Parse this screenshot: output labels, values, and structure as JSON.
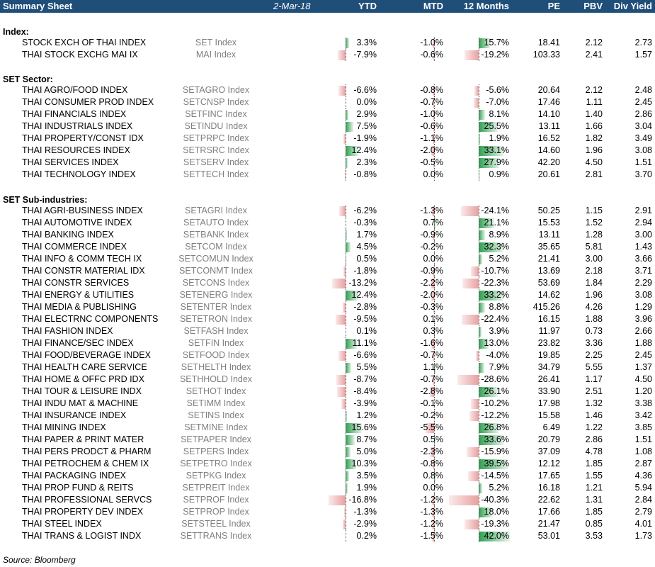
{
  "header": {
    "title": "Summary Sheet",
    "date": "2-Mar-18",
    "columns": [
      "YTD",
      "MTD",
      "12 Months",
      "PE",
      "PBV",
      "Div Yield"
    ]
  },
  "colors": {
    "header_bg": "#1f4e79",
    "positive_bar": "#2e9e4f",
    "negative_bar": "#e8a0a0"
  },
  "sections": [
    {
      "title": "Index:",
      "rows": [
        {
          "name": "STOCK EXCH OF THAI INDEX",
          "ticker": "SET Index",
          "ytd": 3.3,
          "ytd_t": "3.3%",
          "mtd": -1.0,
          "mtd_t": "-1.0%",
          "m12": 15.7,
          "m12_t": "15.7%",
          "pe": "18.41",
          "pbv": "2.12",
          "div": "2.73"
        },
        {
          "name": "THAI STOCK EXCHG MAI IX",
          "ticker": "MAI Index",
          "ytd": -7.9,
          "ytd_t": "-7.9%",
          "mtd": -0.6,
          "mtd_t": "-0.6%",
          "m12": -19.2,
          "m12_t": "-19.2%",
          "pe": "103.33",
          "pbv": "2.41",
          "div": "1.57"
        }
      ]
    },
    {
      "title": "SET Sector:",
      "rows": [
        {
          "name": "THAI AGRO/FOOD INDEX",
          "ticker": "SETAGRO Index",
          "ytd": -6.6,
          "ytd_t": "-6.6%",
          "mtd": -0.8,
          "mtd_t": "-0.8%",
          "m12": -5.6,
          "m12_t": "-5.6%",
          "pe": "20.64",
          "pbv": "2.12",
          "div": "2.48"
        },
        {
          "name": "THAI CONSUMER PROD INDEX",
          "ticker": "SETCNSP Index",
          "ytd": 0.0,
          "ytd_t": "0.0%",
          "mtd": -0.7,
          "mtd_t": "-0.7%",
          "m12": -7.0,
          "m12_t": "-7.0%",
          "pe": "17.46",
          "pbv": "1.11",
          "div": "2.45"
        },
        {
          "name": "THAI FINANCIALS INDEX",
          "ticker": "SETFINC Index",
          "ytd": 2.9,
          "ytd_t": "2.9%",
          "mtd": -1.0,
          "mtd_t": "-1.0%",
          "m12": 8.1,
          "m12_t": "8.1%",
          "pe": "14.10",
          "pbv": "1.40",
          "div": "2.86"
        },
        {
          "name": "THAI INDUSTRIALS INDEX",
          "ticker": "SETINDU Index",
          "ytd": 7.5,
          "ytd_t": "7.5%",
          "mtd": -0.6,
          "mtd_t": "-0.6%",
          "m12": 25.5,
          "m12_t": "25.5%",
          "pe": "13.11",
          "pbv": "1.66",
          "div": "3.04"
        },
        {
          "name": "THAI PROPERTY/CONST IDX",
          "ticker": "SETPRPC Index",
          "ytd": -1.9,
          "ytd_t": "-1.9%",
          "mtd": -1.1,
          "mtd_t": "-1.1%",
          "m12": 1.9,
          "m12_t": "1.9%",
          "pe": "16.52",
          "pbv": "1.82",
          "div": "3.49"
        },
        {
          "name": "THAI RESOURCES INDEX",
          "ticker": "SETRSRC Index",
          "ytd": 12.4,
          "ytd_t": "12.4%",
          "mtd": -2.0,
          "mtd_t": "-2.0%",
          "m12": 33.1,
          "m12_t": "33.1%",
          "pe": "14.60",
          "pbv": "1.96",
          "div": "3.08"
        },
        {
          "name": "THAI SERVICES INDEX",
          "ticker": "SETSERV Index",
          "ytd": 2.3,
          "ytd_t": "2.3%",
          "mtd": -0.5,
          "mtd_t": "-0.5%",
          "m12": 27.9,
          "m12_t": "27.9%",
          "pe": "42.20",
          "pbv": "4.50",
          "div": "1.51"
        },
        {
          "name": "THAI TECHNOLOGY INDEX",
          "ticker": "SETTECH Index",
          "ytd": -0.8,
          "ytd_t": "-0.8%",
          "mtd": 0.0,
          "mtd_t": "0.0%",
          "m12": 0.9,
          "m12_t": "0.9%",
          "pe": "20.61",
          "pbv": "2.81",
          "div": "3.70"
        }
      ]
    },
    {
      "title": "SET Sub-industries:",
      "rows": [
        {
          "name": "THAI AGRI-BUSINESS INDEX",
          "ticker": "SETAGRI Index",
          "ytd": -6.2,
          "ytd_t": "-6.2%",
          "mtd": -1.3,
          "mtd_t": "-1.3%",
          "m12": -24.1,
          "m12_t": "-24.1%",
          "pe": "50.25",
          "pbv": "1.15",
          "div": "2.91"
        },
        {
          "name": "THAI AUTOMOTIVE INDEX",
          "ticker": "SETAUTO Index",
          "ytd": -0.3,
          "ytd_t": "-0.3%",
          "mtd": 0.7,
          "mtd_t": "0.7%",
          "m12": 21.1,
          "m12_t": "21.1%",
          "pe": "15.53",
          "pbv": "1.52",
          "div": "2.94"
        },
        {
          "name": "THAI BANKING INDEX",
          "ticker": "SETBANK Index",
          "ytd": 1.7,
          "ytd_t": "1.7%",
          "mtd": -0.9,
          "mtd_t": "-0.9%",
          "m12": 8.9,
          "m12_t": "8.9%",
          "pe": "13.11",
          "pbv": "1.28",
          "div": "3.00"
        },
        {
          "name": "THAI COMMERCE INDEX",
          "ticker": "SETCOM Index",
          "ytd": 4.5,
          "ytd_t": "4.5%",
          "mtd": -0.2,
          "mtd_t": "-0.2%",
          "m12": 32.3,
          "m12_t": "32.3%",
          "pe": "35.65",
          "pbv": "5.81",
          "div": "1.43"
        },
        {
          "name": "THAI INFO & COMM TECH IX",
          "ticker": "SETCOMUN Index",
          "ytd": 0.5,
          "ytd_t": "0.5%",
          "mtd": 0.0,
          "mtd_t": "0.0%",
          "m12": 5.2,
          "m12_t": "5.2%",
          "pe": "21.41",
          "pbv": "3.00",
          "div": "3.66"
        },
        {
          "name": "THAI CONSTR MATERIAL IDX",
          "ticker": "SETCONMT Index",
          "ytd": -1.8,
          "ytd_t": "-1.8%",
          "mtd": -0.9,
          "mtd_t": "-0.9%",
          "m12": -10.7,
          "m12_t": "-10.7%",
          "pe": "13.69",
          "pbv": "2.18",
          "div": "3.71"
        },
        {
          "name": "THAI CONSTR SERVICES",
          "ticker": "SETCONS Index",
          "ytd": -13.2,
          "ytd_t": "-13.2%",
          "mtd": -2.2,
          "mtd_t": "-2.2%",
          "m12": -22.3,
          "m12_t": "-22.3%",
          "pe": "53.69",
          "pbv": "1.84",
          "div": "2.29"
        },
        {
          "name": "THAI ENERGY & UTILITIES",
          "ticker": "SETENERG Index",
          "ytd": 12.4,
          "ytd_t": "12.4%",
          "mtd": -2.0,
          "mtd_t": "-2.0%",
          "m12": 33.2,
          "m12_t": "33.2%",
          "pe": "14.62",
          "pbv": "1.96",
          "div": "3.08"
        },
        {
          "name": "THAI MEDIA & PUBLISHING",
          "ticker": "SETENTER Index",
          "ytd": -2.8,
          "ytd_t": "-2.8%",
          "mtd": -0.3,
          "mtd_t": "-0.3%",
          "m12": 8.8,
          "m12_t": "8.8%",
          "pe": "415.26",
          "pbv": "4.26",
          "div": "1.29"
        },
        {
          "name": "THAI ELECTRNC COMPONENTS",
          "ticker": "SETETRON Index",
          "ytd": -9.5,
          "ytd_t": "-9.5%",
          "mtd": 0.1,
          "mtd_t": "0.1%",
          "m12": -22.4,
          "m12_t": "-22.4%",
          "pe": "16.15",
          "pbv": "1.88",
          "div": "3.96"
        },
        {
          "name": "THAI FASHION INDEX",
          "ticker": "SETFASH Index",
          "ytd": 0.1,
          "ytd_t": "0.1%",
          "mtd": 0.3,
          "mtd_t": "0.3%",
          "m12": 3.9,
          "m12_t": "3.9%",
          "pe": "11.97",
          "pbv": "0.73",
          "div": "2.66"
        },
        {
          "name": "THAI FINANCE/SEC INDEX",
          "ticker": "SETFIN Index",
          "ytd": 11.1,
          "ytd_t": "11.1%",
          "mtd": -1.6,
          "mtd_t": "-1.6%",
          "m12": 13.0,
          "m12_t": "13.0%",
          "pe": "23.82",
          "pbv": "3.36",
          "div": "1.88"
        },
        {
          "name": "THAI FOOD/BEVERAGE INDEX",
          "ticker": "SETFOOD Index",
          "ytd": -6.6,
          "ytd_t": "-6.6%",
          "mtd": -0.7,
          "mtd_t": "-0.7%",
          "m12": -4.0,
          "m12_t": "-4.0%",
          "pe": "19.85",
          "pbv": "2.25",
          "div": "2.45"
        },
        {
          "name": "THAI HEALTH CARE SERVICE",
          "ticker": "SETHELTH Index",
          "ytd": 5.5,
          "ytd_t": "5.5%",
          "mtd": 1.1,
          "mtd_t": "1.1%",
          "m12": 7.9,
          "m12_t": "7.9%",
          "pe": "34.79",
          "pbv": "5.55",
          "div": "1.37"
        },
        {
          "name": "THAI HOME & OFFC PRD IDX",
          "ticker": "SETHHOLD Index",
          "ytd": -8.7,
          "ytd_t": "-8.7%",
          "mtd": -0.7,
          "mtd_t": "-0.7%",
          "m12": -28.6,
          "m12_t": "-28.6%",
          "pe": "26.41",
          "pbv": "1.17",
          "div": "4.50"
        },
        {
          "name": "THAI TOUR & LEISURE INDX",
          "ticker": "SETHOT Index",
          "ytd": -8.4,
          "ytd_t": "-8.4%",
          "mtd": -2.8,
          "mtd_t": "-2.8%",
          "m12": 26.1,
          "m12_t": "26.1%",
          "pe": "33.90",
          "pbv": "2.51",
          "div": "1.20"
        },
        {
          "name": "THAI INDU MAT & MACHINE",
          "ticker": "SETIMM Index",
          "ytd": -3.9,
          "ytd_t": "-3.9%",
          "mtd": -0.1,
          "mtd_t": "-0.1%",
          "m12": -10.2,
          "m12_t": "-10.2%",
          "pe": "17.98",
          "pbv": "1.32",
          "div": "3.38"
        },
        {
          "name": "THAI INSURANCE INDEX",
          "ticker": "SETINS Index",
          "ytd": 1.2,
          "ytd_t": "1.2%",
          "mtd": -0.2,
          "mtd_t": "-0.2%",
          "m12": -12.2,
          "m12_t": "-12.2%",
          "pe": "15.58",
          "pbv": "1.46",
          "div": "3.42"
        },
        {
          "name": "THAI MINING INDEX",
          "ticker": "SETMINE Index",
          "ytd": 15.6,
          "ytd_t": "15.6%",
          "mtd": -5.5,
          "mtd_t": "-5.5%",
          "m12": 26.8,
          "m12_t": "26.8%",
          "pe": "6.49",
          "pbv": "1.22",
          "div": "3.85"
        },
        {
          "name": "THAI PAPER & PRINT MATER",
          "ticker": "SETPAPER Index",
          "ytd": 8.7,
          "ytd_t": "8.7%",
          "mtd": 0.5,
          "mtd_t": "0.5%",
          "m12": 33.6,
          "m12_t": "33.6%",
          "pe": "20.79",
          "pbv": "2.86",
          "div": "1.51"
        },
        {
          "name": "THAI PERS PRODCT & PHARM",
          "ticker": "SETPERS Index",
          "ytd": 5.0,
          "ytd_t": "5.0%",
          "mtd": -2.3,
          "mtd_t": "-2.3%",
          "m12": -15.9,
          "m12_t": "-15.9%",
          "pe": "37.09",
          "pbv": "4.78",
          "div": "1.08"
        },
        {
          "name": "THAI PETROCHEM & CHEM IX",
          "ticker": "SETPETRO Index",
          "ytd": 10.3,
          "ytd_t": "10.3%",
          "mtd": -0.8,
          "mtd_t": "-0.8%",
          "m12": 39.5,
          "m12_t": "39.5%",
          "pe": "12.12",
          "pbv": "1.85",
          "div": "2.87"
        },
        {
          "name": "THAI PACKAGING INDEX",
          "ticker": "SETPKG Index",
          "ytd": 3.5,
          "ytd_t": "3.5%",
          "mtd": 0.8,
          "mtd_t": "0.8%",
          "m12": -14.5,
          "m12_t": "-14.5%",
          "pe": "17.65",
          "pbv": "1.55",
          "div": "4.36"
        },
        {
          "name": "THAI PROP FUND & REITS",
          "ticker": "SETPREIT Index",
          "ytd": 1.9,
          "ytd_t": "1.9%",
          "mtd": 0.0,
          "mtd_t": "0.0%",
          "m12": 5.2,
          "m12_t": "5.2%",
          "pe": "16.18",
          "pbv": "1.21",
          "div": "5.94"
        },
        {
          "name": "THAI PROFESSIONAL SERVCS",
          "ticker": "SETPROF Index",
          "ytd": -16.8,
          "ytd_t": "-16.8%",
          "mtd": -1.2,
          "mtd_t": "-1.2%",
          "m12": -40.3,
          "m12_t": "-40.3%",
          "pe": "22.62",
          "pbv": "1.31",
          "div": "2.84"
        },
        {
          "name": "THAI PROPERTY DEV INDEX",
          "ticker": "SETPROP Index",
          "ytd": -1.3,
          "ytd_t": "-1.3%",
          "mtd": -1.3,
          "mtd_t": "-1.3%",
          "m12": 18.0,
          "m12_t": "18.0%",
          "pe": "17.66",
          "pbv": "1.85",
          "div": "2.79"
        },
        {
          "name": "THAI STEEL INDEX",
          "ticker": "SETSTEEL Index",
          "ytd": -2.9,
          "ytd_t": "-2.9%",
          "mtd": -1.2,
          "mtd_t": "-1.2%",
          "m12": -19.3,
          "m12_t": "-19.3%",
          "pe": "21.47",
          "pbv": "0.85",
          "div": "4.01"
        },
        {
          "name": "THAI TRANS & LOGIST INDX",
          "ticker": "SETTRANS Index",
          "ytd": 0.2,
          "ytd_t": "0.2%",
          "mtd": -1.5,
          "mtd_t": "-1.5%",
          "m12": 42.0,
          "m12_t": "42.0%",
          "pe": "53.01",
          "pbv": "3.53",
          "div": "1.73"
        }
      ]
    }
  ],
  "source": "Source: Bloomberg"
}
